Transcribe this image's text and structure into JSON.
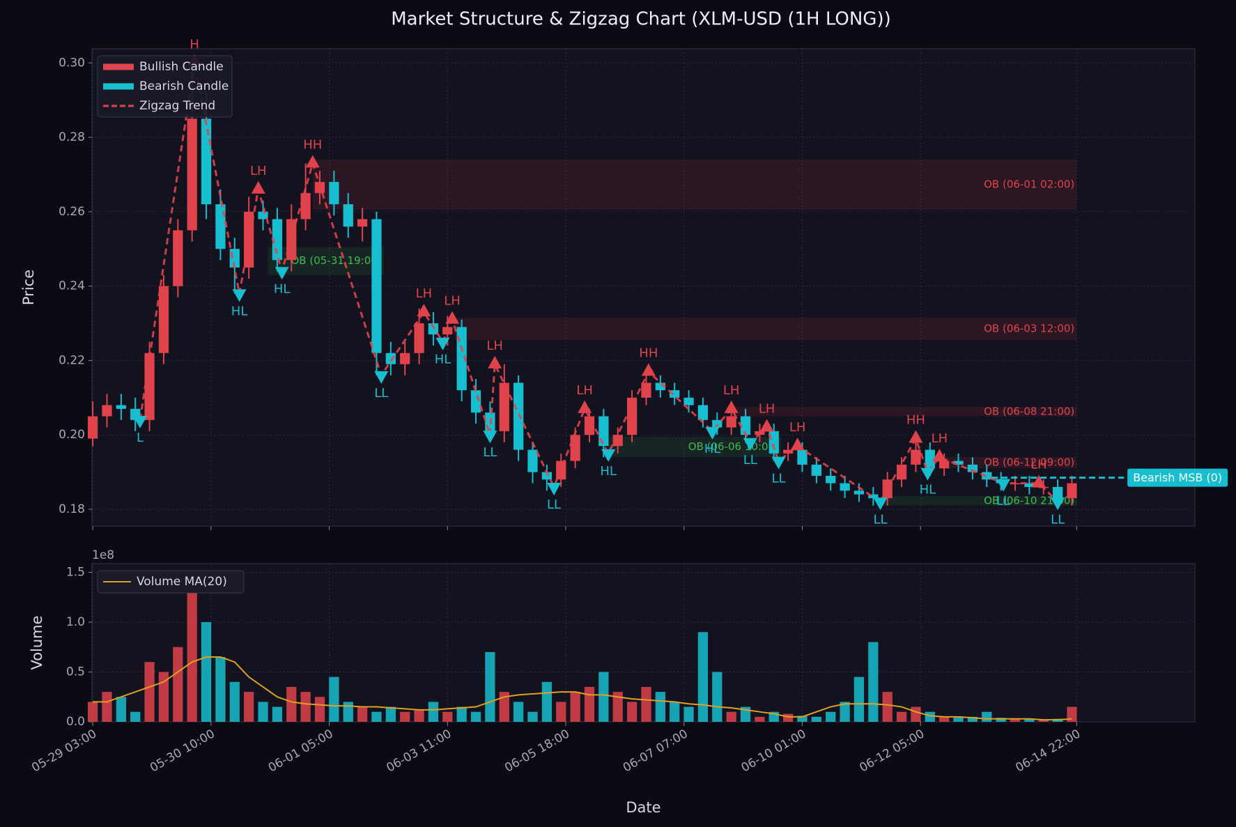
{
  "chart_data": [
    {
      "type": "candlestick",
      "title": "Market Structure & Zigzag Chart (XLM-USD (1H LONG))",
      "ylabel": "Price",
      "bullish_color": "#e0434c",
      "bearish_color": "#17becf",
      "legend": [
        {
          "name": "Bullish Candle",
          "color": "#e0434c"
        },
        {
          "name": "Bearish Candle",
          "color": "#17becf"
        },
        {
          "name": "Zigzag Trend",
          "color": "#e0434c"
        }
      ],
      "legend_position": "upper left",
      "grid": true,
      "xlim": [
        -0.33,
        466
      ],
      "ylim": [
        0.1755,
        0.3038
      ],
      "yticks": [
        0.18,
        {
          "value": 0.2,
          "label": "0.20"
        },
        0.22,
        0.24,
        0.26,
        0.28,
        {
          "value": 0.3,
          "label": "0.30"
        }
      ],
      "x": [
        0,
        6,
        12,
        18,
        24,
        30,
        36,
        42,
        48,
        54,
        60,
        66,
        72,
        78,
        84,
        90,
        96,
        102,
        108,
        114,
        120,
        126,
        132,
        138,
        144,
        150,
        156,
        162,
        168,
        174,
        180,
        186,
        192,
        198,
        204,
        210,
        216,
        222,
        228,
        234,
        240,
        246,
        252,
        258,
        264,
        270,
        276,
        282,
        288,
        294,
        300,
        306,
        312,
        318,
        324,
        330,
        336,
        342,
        348,
        354,
        360,
        366,
        372,
        378,
        384,
        390,
        396,
        402,
        408,
        414
      ],
      "open": [
        0.199,
        0.205,
        0.208,
        0.207,
        0.204,
        0.222,
        0.24,
        0.255,
        0.285,
        0.262,
        0.25,
        0.245,
        0.26,
        0.258,
        0.247,
        0.258,
        0.265,
        0.268,
        0.262,
        0.256,
        0.258,
        0.222,
        0.219,
        0.222,
        0.23,
        0.227,
        0.229,
        0.212,
        0.206,
        0.201,
        0.214,
        0.196,
        0.19,
        0.188,
        0.193,
        0.2,
        0.205,
        0.197,
        0.2,
        0.21,
        0.214,
        0.212,
        0.21,
        0.208,
        0.204,
        0.202,
        0.205,
        0.2,
        0.201,
        0.195,
        0.196,
        0.192,
        0.189,
        0.187,
        0.185,
        0.184,
        0.183,
        0.188,
        0.192,
        0.196,
        0.191,
        0.193,
        0.192,
        0.19,
        0.188,
        0.187,
        0.187,
        0.186,
        0.186,
        0.183
      ],
      "high": [
        0.209,
        0.211,
        0.211,
        0.21,
        0.225,
        0.243,
        0.258,
        0.3,
        0.292,
        0.266,
        0.253,
        0.264,
        0.263,
        0.261,
        0.262,
        0.273,
        0.271,
        0.271,
        0.265,
        0.261,
        0.26,
        0.225,
        0.225,
        0.234,
        0.233,
        0.232,
        0.231,
        0.215,
        0.209,
        0.219,
        0.216,
        0.198,
        0.192,
        0.195,
        0.202,
        0.207,
        0.207,
        0.202,
        0.212,
        0.217,
        0.216,
        0.214,
        0.212,
        0.21,
        0.206,
        0.207,
        0.207,
        0.203,
        0.203,
        0.198,
        0.198,
        0.194,
        0.191,
        0.189,
        0.187,
        0.186,
        0.19,
        0.194,
        0.199,
        0.198,
        0.195,
        0.195,
        0.194,
        0.192,
        0.19,
        0.189,
        0.189,
        0.188,
        0.188,
        0.189
      ],
      "low": [
        0.197,
        0.202,
        0.204,
        0.201,
        0.201,
        0.219,
        0.237,
        0.252,
        0.258,
        0.247,
        0.238,
        0.242,
        0.255,
        0.244,
        0.244,
        0.255,
        0.262,
        0.259,
        0.253,
        0.252,
        0.216,
        0.216,
        0.216,
        0.219,
        0.224,
        0.224,
        0.209,
        0.203,
        0.198,
        0.198,
        0.193,
        0.187,
        0.185,
        0.186,
        0.191,
        0.198,
        0.194,
        0.195,
        0.198,
        0.208,
        0.21,
        0.208,
        0.206,
        0.202,
        0.2,
        0.2,
        0.198,
        0.198,
        0.193,
        0.193,
        0.19,
        0.187,
        0.185,
        0.183,
        0.182,
        0.181,
        0.181,
        0.186,
        0.19,
        0.189,
        0.189,
        0.19,
        0.188,
        0.186,
        0.185,
        0.185,
        0.184,
        0.184,
        0.181,
        0.181
      ],
      "close": [
        0.205,
        0.208,
        0.207,
        0.204,
        0.222,
        0.24,
        0.255,
        0.285,
        0.262,
        0.25,
        0.245,
        0.26,
        0.258,
        0.247,
        0.258,
        0.265,
        0.268,
        0.262,
        0.256,
        0.258,
        0.222,
        0.219,
        0.222,
        0.23,
        0.227,
        0.229,
        0.212,
        0.206,
        0.201,
        0.214,
        0.196,
        0.19,
        0.188,
        0.193,
        0.2,
        0.205,
        0.197,
        0.2,
        0.21,
        0.214,
        0.212,
        0.21,
        0.208,
        0.204,
        0.202,
        0.205,
        0.2,
        0.201,
        0.195,
        0.196,
        0.192,
        0.189,
        0.187,
        0.185,
        0.184,
        0.183,
        0.188,
        0.192,
        0.196,
        0.191,
        0.193,
        0.192,
        0.19,
        0.188,
        0.187,
        0.187,
        0.186,
        0.186,
        0.183,
        0.187
      ],
      "zigzag": {
        "x": [
          20,
          43,
          62,
          70,
          80,
          93,
          122,
          140,
          148,
          152,
          168,
          170,
          195,
          208,
          218,
          235,
          262,
          270,
          278,
          285,
          290,
          298,
          333,
          348,
          353,
          358,
          385,
          400,
          408
        ],
        "y": [
          0.204,
          0.3,
          0.238,
          0.266,
          0.244,
          0.273,
          0.216,
          0.233,
          0.225,
          0.231,
          0.2,
          0.219,
          0.186,
          0.207,
          0.195,
          0.217,
          0.201,
          0.207,
          0.198,
          0.202,
          0.193,
          0.197,
          0.182,
          0.199,
          0.19,
          0.194,
          0.187,
          0.187,
          0.182
        ],
        "labels": [
          "L",
          "H",
          "HL",
          "LH",
          "HL",
          "HH",
          "LL",
          "LH",
          "HL",
          "LH",
          "LL",
          "LH",
          "LL",
          "LH",
          "HL",
          "HH",
          "HL",
          "LH",
          "LL",
          "LH",
          "LL",
          "LH",
          "LL",
          "HH",
          "HL",
          "LH",
          "LL",
          "LH",
          "LL"
        ]
      },
      "order_blocks": [
        {
          "label": "OB (06-01 02:00)",
          "x": [
            93,
            416
          ],
          "y": [
            0.2605,
            0.274
          ],
          "color": "#e0434c"
        },
        {
          "label": "OB (05-31 19:00)",
          "x": [
            74,
            123
          ],
          "y": [
            0.243,
            0.2505
          ],
          "color": "#3fb950"
        },
        {
          "label": "OB (06-03 12:00)",
          "x": [
            153,
            416
          ],
          "y": [
            0.2255,
            0.2315
          ],
          "color": "#e0434c"
        },
        {
          "label": "OB (06-08 21:00)",
          "x": [
            271,
            416
          ],
          "y": [
            0.205,
            0.2075
          ],
          "color": "#e0434c"
        },
        {
          "label": "OB (06-06 10:00)",
          "x": [
            218,
            291
          ],
          "y": [
            0.194,
            0.1995
          ],
          "color": "#3fb950"
        },
        {
          "label": "OB (06-12 09:00)",
          "x": [
            358,
            416
          ],
          "y": [
            0.191,
            0.194
          ],
          "color": "#e0434c"
        },
        {
          "label": "OB (06-10 21:00)",
          "x": [
            333,
            416
          ],
          "y": [
            0.181,
            0.1835
          ],
          "color": "#3fb950"
        }
      ],
      "msb": {
        "label": "Bearish MSB (0)",
        "y": 0.1885,
        "x": [
          380,
          436
        ],
        "color": "#17becf"
      }
    },
    {
      "type": "bar",
      "ylabel": "Volume",
      "xlabel": "Date",
      "offset_label": "1e8",
      "grid": true,
      "legend_position": "upper left",
      "xlim": [
        -0.33,
        466
      ],
      "ylim": [
        0,
        1.587
      ],
      "yticks": [
        {
          "value": 0,
          "label": "0.0"
        },
        0.5,
        {
          "value": 1,
          "label": "1.0"
        },
        1.5
      ],
      "xticks": [
        {
          "value": 0,
          "label": "05-29 03:00"
        },
        {
          "value": 50,
          "label": "05-30 10:00"
        },
        {
          "value": 100,
          "label": "06-01 05:00"
        },
        {
          "value": 150,
          "label": "06-03 11:00"
        },
        {
          "value": 200,
          "label": "06-05 18:00"
        },
        {
          "value": 250,
          "label": "06-07 07:00"
        },
        {
          "value": 300,
          "label": "06-10 01:00"
        },
        {
          "value": 350,
          "label": "06-12 05:00"
        },
        {
          "value": 416,
          "label": "06-14 22:00"
        }
      ],
      "values": [
        0.2,
        0.3,
        0.25,
        0.1,
        0.6,
        0.5,
        0.75,
        1.4,
        1.0,
        0.65,
        0.4,
        0.3,
        0.2,
        0.15,
        0.35,
        0.3,
        0.25,
        0.45,
        0.2,
        0.15,
        0.1,
        0.15,
        0.1,
        0.12,
        0.2,
        0.1,
        0.15,
        0.1,
        0.7,
        0.3,
        0.2,
        0.1,
        0.4,
        0.2,
        0.3,
        0.35,
        0.5,
        0.3,
        0.2,
        0.35,
        0.3,
        0.2,
        0.15,
        0.9,
        0.5,
        0.1,
        0.15,
        0.05,
        0.1,
        0.08,
        0.06,
        0.05,
        0.1,
        0.2,
        0.45,
        0.8,
        0.3,
        0.1,
        0.15,
        0.1,
        0.05,
        0.05,
        0.05,
        0.1,
        0.04,
        0.03,
        0.03,
        0.02,
        0.03,
        0.15
      ],
      "ma": {
        "name": "Volume MA(20)",
        "color": "#e0a020",
        "values": [
          0.2,
          0.2,
          0.25,
          0.3,
          0.35,
          0.4,
          0.5,
          0.6,
          0.65,
          0.65,
          0.6,
          0.45,
          0.35,
          0.25,
          0.2,
          0.18,
          0.17,
          0.16,
          0.16,
          0.15,
          0.15,
          0.14,
          0.13,
          0.12,
          0.12,
          0.13,
          0.14,
          0.15,
          0.2,
          0.25,
          0.27,
          0.28,
          0.29,
          0.3,
          0.3,
          0.27,
          0.27,
          0.25,
          0.23,
          0.22,
          0.21,
          0.2,
          0.18,
          0.17,
          0.15,
          0.14,
          0.12,
          0.1,
          0.08,
          0.05,
          0.05,
          0.1,
          0.15,
          0.18,
          0.18,
          0.18,
          0.17,
          0.15,
          0.1,
          0.06,
          0.05,
          0.05,
          0.04,
          0.03,
          0.03,
          0.03,
          0.03,
          0.02,
          0.02,
          0.03
        ]
      }
    }
  ]
}
